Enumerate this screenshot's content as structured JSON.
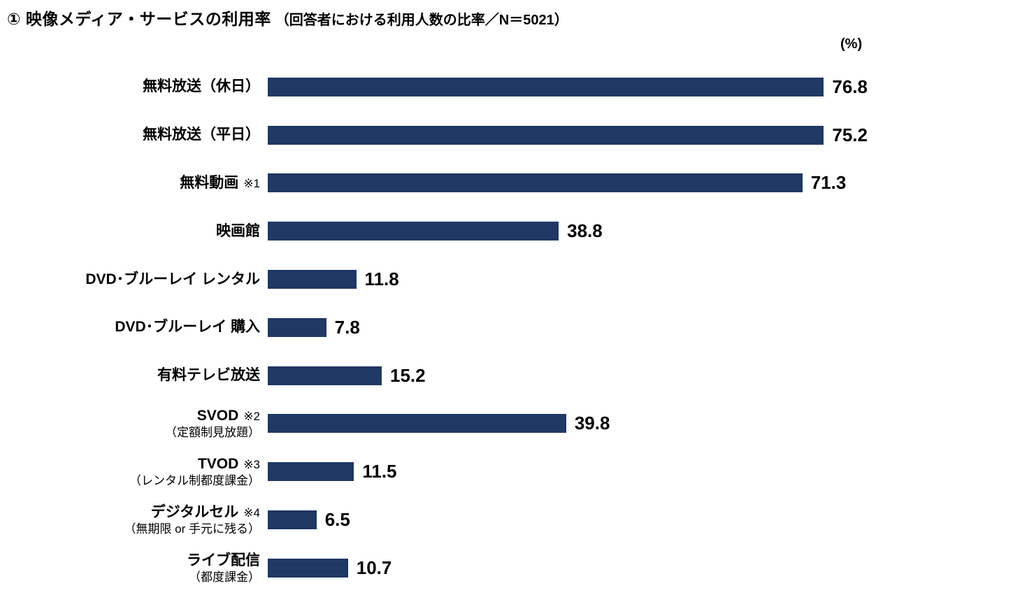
{
  "title": {
    "main": "① 映像メディア・サービスの利用率",
    "sub": "（回答者における利用人数の比率／N＝5021）"
  },
  "axis": {
    "unit_label": "(%)",
    "xmax": 80
  },
  "colors": {
    "bar": "#1F3864",
    "text": "#000000",
    "background": "#FFFFFF"
  },
  "chart_data": {
    "type": "bar",
    "orientation": "horizontal",
    "title": "① 映像メディア・サービスの利用率（回答者における利用人数の比率／N＝5021）",
    "unit": "%",
    "xlim": [
      0,
      80
    ],
    "grid": false,
    "legend": false,
    "value_labels": true,
    "categories": [
      "無料放送（休日）",
      "無料放送（平日）",
      "無料動画 ※1",
      "映画館",
      "DVD･ブルーレイ レンタル",
      "DVD･ブルーレイ 購入",
      "有料テレビ放送",
      "SVOD ※2（定額制見放題）",
      "TVOD ※3（レンタル制都度課金）",
      "デジタルセル ※4（無期限 or 手元に残る）",
      "ライブ配信（都度課金）"
    ],
    "values": [
      76.8,
      75.2,
      71.3,
      38.8,
      11.8,
      7.8,
      15.2,
      39.8,
      11.5,
      6.5,
      10.7
    ]
  },
  "rows": [
    {
      "label": "無料放送（休日）",
      "note": "",
      "sublabel": "",
      "value": "76.8",
      "pct": 76.8
    },
    {
      "label": "無料放送（平日）",
      "note": "",
      "sublabel": "",
      "value": "75.2",
      "pct": 75.2
    },
    {
      "label": "無料動画",
      "note": "※1",
      "sublabel": "",
      "value": "71.3",
      "pct": 71.3
    },
    {
      "label": "映画館",
      "note": "",
      "sublabel": "",
      "value": "38.8",
      "pct": 38.8
    },
    {
      "label": "DVD･ブルーレイ レンタル",
      "note": "",
      "sublabel": "",
      "value": "11.8",
      "pct": 11.8
    },
    {
      "label": "DVD･ブルーレイ 購入",
      "note": "",
      "sublabel": "",
      "value": "7.8",
      "pct": 7.8
    },
    {
      "label": "有料テレビ放送",
      "note": "",
      "sublabel": "",
      "value": "15.2",
      "pct": 15.2
    },
    {
      "label": "SVOD",
      "note": "※2",
      "sublabel": "（定額制見放題）",
      "value": "39.8",
      "pct": 39.8
    },
    {
      "label": "TVOD",
      "note": "※3",
      "sublabel": "（レンタル制都度課金）",
      "value": "11.5",
      "pct": 11.5
    },
    {
      "label": "デジタルセル",
      "note": "※4",
      "sublabel": "（無期限 or 手元に残る）",
      "value": "6.5",
      "pct": 6.5
    },
    {
      "label": "ライブ配信",
      "note": "",
      "sublabel": "（都度課金）",
      "value": "10.7",
      "pct": 10.7
    }
  ]
}
